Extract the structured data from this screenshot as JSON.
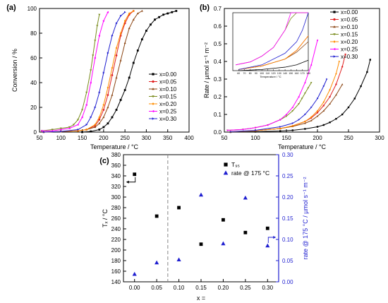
{
  "chart_data": [
    {
      "panel_label": "(a)",
      "type": "line",
      "xlabel": "Temperature / °C",
      "ylabel": "Conversion / %",
      "xlim": [
        50,
        400
      ],
      "ylim": [
        0,
        100
      ],
      "xticks": [
        "50",
        "100",
        "150",
        "200",
        "250",
        "300",
        "350",
        "400"
      ],
      "yticks": [
        "0",
        "20",
        "40",
        "60",
        "80",
        "100"
      ],
      "legend_position": "bottom-right",
      "series": [
        {
          "name": "x=0.00",
          "color": "#000000",
          "marker": "square",
          "x": [
            150,
            170,
            190,
            200,
            210,
            220,
            230,
            240,
            250,
            260,
            270,
            280,
            290,
            300,
            310,
            320,
            330,
            340,
            350,
            360,
            370
          ],
          "y": [
            0,
            0.5,
            2,
            4,
            7,
            12,
            18,
            26,
            34,
            44,
            56,
            66,
            75,
            82,
            87,
            91,
            93,
            95,
            96,
            97,
            98
          ]
        },
        {
          "name": "x=0.05",
          "color": "#e02020",
          "marker": "circle",
          "x": [
            60,
            100,
            140,
            160,
            180,
            190,
            200,
            210,
            220,
            230,
            240,
            250,
            260,
            270
          ],
          "y": [
            0,
            0.5,
            1,
            2,
            5,
            10,
            18,
            30,
            46,
            62,
            78,
            88,
            95,
            98
          ]
        },
        {
          "name": "x=0.10",
          "color": "#8b4513",
          "marker": "triangle",
          "x": [
            60,
            100,
            140,
            160,
            180,
            190,
            200,
            210,
            220,
            230,
            240,
            250,
            260,
            270,
            280,
            290
          ],
          "y": [
            0,
            0.5,
            1,
            2,
            4,
            7,
            12,
            20,
            30,
            44,
            58,
            72,
            84,
            91,
            96,
            98
          ]
        },
        {
          "name": "x=0.15",
          "color": "#7a8c1e",
          "marker": "triangle-down",
          "x": [
            55,
            80,
            100,
            120,
            130,
            140,
            150,
            160,
            170,
            175,
            180,
            185,
            190
          ],
          "y": [
            1,
            2,
            3,
            4,
            6,
            10,
            18,
            32,
            50,
            62,
            74,
            86,
            95
          ]
        },
        {
          "name": "x=0.20",
          "color": "#ff8c00",
          "marker": "diamond",
          "x": [
            60,
            100,
            140,
            160,
            180,
            190,
            200,
            210,
            220,
            230,
            240,
            250,
            260,
            270
          ],
          "y": [
            0,
            0.5,
            1,
            2,
            6,
            12,
            22,
            36,
            52,
            68,
            80,
            90,
            96,
            98
          ]
        },
        {
          "name": "x=0.25",
          "color": "#ff00ff",
          "marker": "triangle-left",
          "x": [
            55,
            80,
            100,
            120,
            140,
            150,
            160,
            170,
            180,
            190,
            200,
            210
          ],
          "y": [
            1,
            1,
            2,
            3,
            6,
            12,
            22,
            40,
            60,
            78,
            90,
            97
          ]
        },
        {
          "name": "x=0.30",
          "color": "#1f1fd0",
          "marker": "triangle-right",
          "x": [
            60,
            100,
            140,
            160,
            170,
            180,
            190,
            200,
            210,
            220,
            230,
            240,
            250
          ],
          "y": [
            0,
            0.5,
            2,
            6,
            12,
            20,
            32,
            48,
            64,
            78,
            88,
            94,
            97
          ]
        }
      ]
    },
    {
      "panel_label": "(b)",
      "type": "line",
      "xlabel": "Temperature / °C",
      "ylabel": "Rate / µmol s⁻¹ m⁻²",
      "xlim": [
        50,
        300
      ],
      "ylim": [
        0,
        0.7
      ],
      "xticks": [
        "50",
        "100",
        "150",
        "200",
        "250",
        "300"
      ],
      "yticks": [
        "0.0",
        "0.1",
        "0.2",
        "0.3",
        "0.4",
        "0.5",
        "0.6",
        "0.7"
      ],
      "legend_position": "top-right",
      "series": [
        {
          "name": "x=0.00",
          "color": "#000000",
          "x": [
            60,
            100,
            140,
            160,
            180,
            200,
            210,
            220,
            230,
            240,
            250,
            260,
            270,
            280,
            285
          ],
          "y": [
            0,
            0.002,
            0.006,
            0.01,
            0.018,
            0.03,
            0.04,
            0.055,
            0.075,
            0.1,
            0.14,
            0.19,
            0.26,
            0.34,
            0.41
          ]
        },
        {
          "name": "x=0.05",
          "color": "#e02020",
          "x": [
            60,
            100,
            140,
            160,
            180,
            190,
            200,
            210,
            220,
            230,
            240,
            245
          ],
          "y": [
            0.002,
            0.008,
            0.02,
            0.035,
            0.06,
            0.08,
            0.11,
            0.15,
            0.2,
            0.27,
            0.37,
            0.44
          ]
        },
        {
          "name": "x=0.10",
          "color": "#8b4513",
          "x": [
            60,
            100,
            140,
            160,
            180,
            190,
            200,
            210,
            220,
            230,
            240
          ],
          "y": [
            0.002,
            0.008,
            0.02,
            0.032,
            0.05,
            0.065,
            0.09,
            0.12,
            0.16,
            0.21,
            0.27
          ]
        },
        {
          "name": "x=0.15",
          "color": "#7a8c1e",
          "x": [
            55,
            80,
            100,
            120,
            140,
            150,
            160,
            170,
            175,
            180,
            185,
            190
          ],
          "y": [
            0.01,
            0.015,
            0.025,
            0.04,
            0.07,
            0.09,
            0.12,
            0.16,
            0.19,
            0.22,
            0.25,
            0.28
          ]
        },
        {
          "name": "x=0.20",
          "color": "#ff8c00",
          "x": [
            60,
            100,
            140,
            160,
            180,
            190,
            200,
            210,
            220,
            230,
            235
          ],
          "y": [
            0.002,
            0.008,
            0.02,
            0.035,
            0.06,
            0.085,
            0.12,
            0.17,
            0.24,
            0.33,
            0.4
          ]
        },
        {
          "name": "x=0.25",
          "color": "#ff00ff",
          "x": [
            55,
            80,
            100,
            120,
            140,
            150,
            160,
            170,
            180,
            190,
            200
          ],
          "y": [
            0.01,
            0.015,
            0.025,
            0.04,
            0.07,
            0.1,
            0.14,
            0.2,
            0.28,
            0.38,
            0.52
          ]
        },
        {
          "name": "x=0.30",
          "color": "#1f1fd0",
          "x": [
            60,
            100,
            140,
            160,
            170,
            180,
            190,
            200,
            210,
            215
          ],
          "y": [
            0.002,
            0.01,
            0.03,
            0.05,
            0.07,
            0.1,
            0.14,
            0.19,
            0.26,
            0.3
          ]
        }
      ],
      "inset": {
        "xlabel": "Temperature / °C",
        "xlim": [
          50,
          180
        ],
        "ylim": [
          0,
          0.1
        ],
        "xticks": [
          "60",
          "70",
          "80",
          "90",
          "100",
          "110",
          "120",
          "130",
          "140",
          "150",
          "160",
          "170",
          "180"
        ],
        "note": "zoomed low-temperature region"
      }
    },
    {
      "panel_label": "(c)",
      "type": "scatter",
      "xlabel": "x =",
      "ylabel_left": "Tₓ / °C",
      "ylabel_right": "rate @ 175 °C / µmol s⁻¹ m⁻²",
      "xlim": [
        -0.025,
        0.325
      ],
      "ylim_left": [
        140,
        380
      ],
      "ylim_right": [
        0,
        0.3
      ],
      "xticks": [
        "0.00",
        "0.05",
        "0.10",
        "0.15",
        "0.20",
        "0.25",
        "0.30"
      ],
      "yticks_left": [
        "140",
        "160",
        "180",
        "200",
        "220",
        "240",
        "260",
        "280",
        "300",
        "320",
        "340",
        "360",
        "380"
      ],
      "yticks_right": [
        "0.00",
        "0.05",
        "0.10",
        "0.15",
        "0.20",
        "0.25",
        "0.30"
      ],
      "divider_x": 0.075,
      "legend_position": "top-right",
      "series": [
        {
          "name": "T₉₅",
          "color": "#000000",
          "marker": "square",
          "axis": "left",
          "x": [
            0.0,
            0.05,
            0.1,
            0.15,
            0.2,
            0.25,
            0.3
          ],
          "y": [
            343,
            264,
            280,
            211,
            257,
            233,
            241
          ]
        },
        {
          "name": "rate @ 175 °C",
          "color": "#1f1fd0",
          "marker": "triangle",
          "axis": "right",
          "x": [
            0.0,
            0.05,
            0.1,
            0.15,
            0.2,
            0.25,
            0.3
          ],
          "y": [
            0.018,
            0.045,
            0.052,
            0.205,
            0.09,
            0.198,
            0.085
          ]
        }
      ]
    }
  ]
}
